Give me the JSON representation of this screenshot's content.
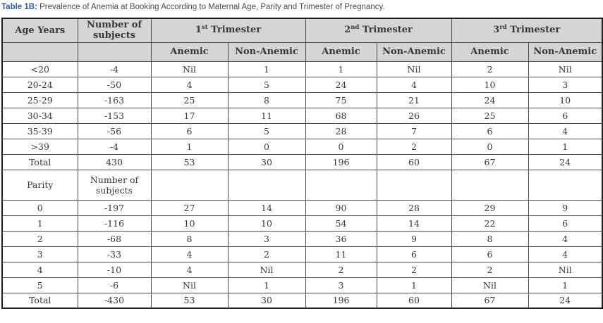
{
  "title": {
    "prefix": "Table 1B:",
    "text": " Prevalence of Anemia at Booking According to Maternal Age, Parity and Trimester of Pregnancy."
  },
  "table": {
    "header": {
      "age": "Age Years",
      "subjects": "Number of subjects",
      "groups": [
        {
          "num": "1",
          "ord": "st",
          "label": " Trimester"
        },
        {
          "num": "2",
          "ord": "nd",
          "label": " Trimester"
        },
        {
          "num": "3",
          "ord": "rd",
          "label": " Trimester"
        }
      ],
      "subheaders": [
        "Anemic",
        "Non-Anemic",
        "Anemic",
        "Non-Anemic",
        "Anemic",
        "Non-Anemic"
      ]
    },
    "rows": [
      [
        "<20",
        "-4",
        "Nil",
        "1",
        "1",
        "Nil",
        "2",
        "Nil"
      ],
      [
        "20-24",
        "-50",
        "4",
        "5",
        "24",
        "4",
        "10",
        "3"
      ],
      [
        "25-29",
        "-163",
        "25",
        "8",
        "75",
        "21",
        "24",
        "10"
      ],
      [
        "30-34",
        "-153",
        "17",
        "11",
        "68",
        "26",
        "25",
        "6"
      ],
      [
        "35-39",
        "-56",
        "6",
        "5",
        "28",
        "7",
        "6",
        "4"
      ],
      [
        ">39",
        "-4",
        "1",
        "0",
        "0",
        "2",
        "0",
        "1"
      ],
      [
        "Total",
        "430",
        "53",
        "30",
        "196",
        "60",
        "67",
        "24"
      ],
      [
        "Parity",
        "Number of subjects",
        "",
        "",
        "",
        "",
        "",
        ""
      ],
      [
        "0",
        "-197",
        "27",
        "14",
        "90",
        "28",
        "29",
        "9"
      ],
      [
        "1",
        "-116",
        "10",
        "10",
        "54",
        "14",
        "22",
        "6"
      ],
      [
        "2",
        "-68",
        "8",
        "3",
        "36",
        "9",
        "8",
        "4"
      ],
      [
        "3",
        "-33",
        "4",
        "2",
        "11",
        "6",
        "6",
        "4"
      ],
      [
        "4",
        "-10",
        "4",
        "Nil",
        "2",
        "2",
        "2",
        "Nil"
      ],
      [
        "5",
        "-6",
        "Nil",
        "1",
        "3",
        "1",
        "Nil",
        "1"
      ],
      [
        "Total",
        "-430",
        "53",
        "30",
        "196",
        "60",
        "67",
        "24"
      ]
    ]
  },
  "colors": {
    "caption_accent": "#2b5ea6",
    "caption_text": "#4b4b4b",
    "header_bg": "#d3d6d5",
    "border_inner": "#4a4a4a",
    "border_outer": "#1f1f1f",
    "cell_text": "#383838"
  }
}
